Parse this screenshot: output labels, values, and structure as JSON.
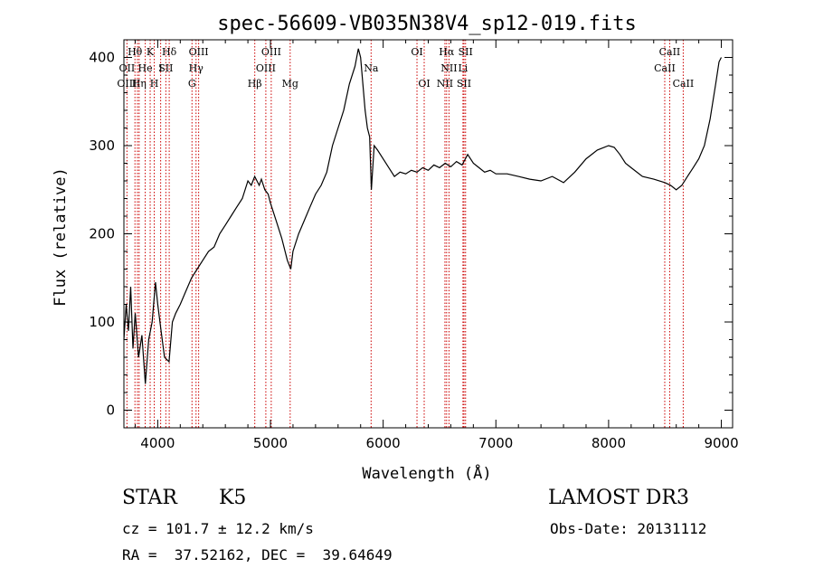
{
  "chart_data": {
    "type": "line",
    "title": "spec-56609-VB035N38V4_sp12-019.fits",
    "xlabel": "Wavelength (Å)",
    "ylabel": "Flux (relative)",
    "xlim": [
      3700,
      9100
    ],
    "ylim": [
      -20,
      420
    ],
    "xticks": [
      4000,
      5000,
      6000,
      7000,
      8000,
      9000
    ],
    "yticks": [
      0,
      100,
      200,
      300,
      400
    ],
    "line_color": "#000000",
    "marker_color": "#cc0000",
    "grid": false,
    "series": [
      {
        "x": [
          3700,
          3720,
          3740,
          3760,
          3780,
          3800,
          3830,
          3860,
          3890,
          3920,
          3950,
          3980,
          4000,
          4030,
          4060,
          4100,
          4130,
          4160,
          4200,
          4250,
          4300,
          4350,
          4400,
          4450,
          4500,
          4550,
          4600,
          4650,
          4700,
          4750,
          4800,
          4830,
          4860,
          4880,
          4900,
          4920,
          4950,
          4980,
          5000,
          5050,
          5100,
          5150,
          5180,
          5200,
          5250,
          5300,
          5350,
          5400,
          5450,
          5500,
          5550,
          5600,
          5650,
          5700,
          5750,
          5780,
          5800,
          5820,
          5840,
          5860,
          5880,
          5895,
          5920,
          5950,
          6000,
          6050,
          6100,
          6150,
          6200,
          6250,
          6300,
          6350,
          6400,
          6450,
          6500,
          6550,
          6600,
          6650,
          6700,
          6750,
          6800,
          6850,
          6900,
          6950,
          7000,
          7100,
          7200,
          7300,
          7400,
          7500,
          7600,
          7700,
          7800,
          7900,
          8000,
          8050,
          8100,
          8150,
          8200,
          8300,
          8400,
          8500,
          8550,
          8600,
          8650,
          8700,
          8750,
          8800,
          8850,
          8900,
          8950,
          8980,
          9000
        ],
        "y": [
          80,
          120,
          90,
          140,
          70,
          110,
          60,
          85,
          30,
          80,
          100,
          145,
          120,
          90,
          60,
          55,
          100,
          110,
          120,
          135,
          150,
          160,
          170,
          180,
          185,
          200,
          210,
          220,
          230,
          240,
          260,
          255,
          265,
          260,
          255,
          262,
          250,
          245,
          235,
          215,
          195,
          170,
          160,
          180,
          200,
          215,
          230,
          245,
          255,
          270,
          300,
          320,
          340,
          370,
          390,
          410,
          400,
          370,
          340,
          320,
          310,
          250,
          300,
          295,
          285,
          275,
          265,
          270,
          268,
          272,
          270,
          275,
          272,
          278,
          275,
          280,
          276,
          282,
          278,
          290,
          280,
          275,
          270,
          272,
          268,
          268,
          265,
          262,
          260,
          265,
          258,
          270,
          285,
          295,
          300,
          298,
          290,
          280,
          275,
          265,
          262,
          258,
          255,
          250,
          255,
          265,
          275,
          285,
          300,
          330,
          370,
          395,
          400
        ]
      }
    ],
    "vlines": [
      3727,
      3798,
      3820,
      3835,
      3889,
      3933,
      3969,
      4026,
      4072,
      4102,
      4304,
      4340,
      4363,
      4861,
      4959,
      5007,
      5175,
      5893,
      6300,
      6364,
      6548,
      6563,
      6584,
      6708,
      6717,
      6731,
      8498,
      8542,
      8662
    ],
    "line_labels": [
      {
        "text": "Hθ",
        "x": 3798,
        "row": 0
      },
      {
        "text": "K",
        "x": 3933,
        "row": 0
      },
      {
        "text": "Hδ",
        "x": 4102,
        "row": 0
      },
      {
        "text": "OIII",
        "x": 4363,
        "row": 0
      },
      {
        "text": "OIII",
        "x": 5007,
        "row": 0
      },
      {
        "text": "OI",
        "x": 6300,
        "row": 0
      },
      {
        "text": "Hα",
        "x": 6563,
        "row": 0
      },
      {
        "text": "SII",
        "x": 6731,
        "row": 0
      },
      {
        "text": "CaII",
        "x": 8542,
        "row": 0
      },
      {
        "text": "OII",
        "x": 3727,
        "row": 1
      },
      {
        "text": "He",
        "x": 3889,
        "row": 1
      },
      {
        "text": "I",
        "x": 4026,
        "row": 1
      },
      {
        "text": "SII",
        "x": 4072,
        "row": 1
      },
      {
        "text": "Hγ",
        "x": 4340,
        "row": 1
      },
      {
        "text": "OIII",
        "x": 4959,
        "row": 1
      },
      {
        "text": "Na",
        "x": 5893,
        "row": 1
      },
      {
        "text": "NII",
        "x": 6584,
        "row": 1
      },
      {
        "text": "Li",
        "x": 6708,
        "row": 1
      },
      {
        "text": "CaII",
        "x": 8498,
        "row": 1
      },
      {
        "text": "OIII",
        "x": 3727,
        "row": 2
      },
      {
        "text": "Hη",
        "x": 3835,
        "row": 2
      },
      {
        "text": "H",
        "x": 3969,
        "row": 2
      },
      {
        "text": "G",
        "x": 4304,
        "row": 2
      },
      {
        "text": "Hβ",
        "x": 4861,
        "row": 2
      },
      {
        "text": "Mg",
        "x": 5175,
        "row": 2
      },
      {
        "text": "OI",
        "x": 6364,
        "row": 2
      },
      {
        "text": "NII",
        "x": 6548,
        "row": 2
      },
      {
        "text": "SII",
        "x": 6717,
        "row": 2
      },
      {
        "text": "CaII",
        "x": 8662,
        "row": 2
      }
    ]
  },
  "info": {
    "object_class": "STAR",
    "subclass": "K5",
    "survey": "LAMOST DR3",
    "cz": "cz = 101.7 ± 12.2 km/s",
    "obs_date": "Obs-Date: 20131112",
    "coords": "RA =  37.52162, DEC =  39.64649"
  }
}
